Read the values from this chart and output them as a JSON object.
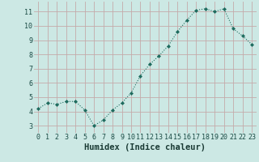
{
  "x": [
    0,
    1,
    2,
    3,
    4,
    5,
    6,
    7,
    8,
    9,
    10,
    11,
    12,
    13,
    14,
    15,
    16,
    17,
    18,
    19,
    20,
    21,
    22,
    23
  ],
  "y": [
    4.2,
    4.6,
    4.5,
    4.7,
    4.7,
    4.1,
    3.0,
    3.4,
    4.1,
    4.6,
    5.3,
    6.5,
    7.3,
    7.9,
    8.6,
    9.6,
    10.4,
    11.1,
    11.2,
    11.0,
    11.2,
    9.8,
    9.3,
    8.7
  ],
  "xlabel": "Humidex (Indice chaleur)",
  "xlim": [
    -0.5,
    23.5
  ],
  "ylim": [
    2.5,
    11.7
  ],
  "yticks": [
    3,
    4,
    5,
    6,
    7,
    8,
    9,
    10,
    11
  ],
  "xticks": [
    0,
    1,
    2,
    3,
    4,
    5,
    6,
    7,
    8,
    9,
    10,
    11,
    12,
    13,
    14,
    15,
    16,
    17,
    18,
    19,
    20,
    21,
    22,
    23
  ],
  "line_color": "#1e6b5e",
  "marker_color": "#1e6b5e",
  "bg_color": "#cce8e4",
  "grid_color": "#c4aaaa",
  "axis_bg": "#cce8e4",
  "tick_label_color": "#1a4a44",
  "xlabel_color": "#1a3a34",
  "tick_fontsize": 6.0,
  "xlabel_fontsize": 7.5
}
